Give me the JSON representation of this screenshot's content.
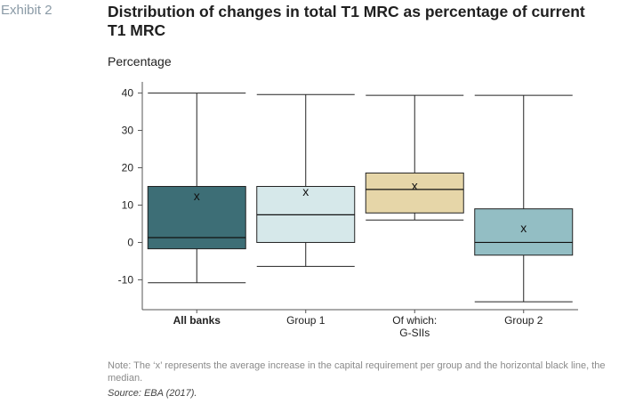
{
  "header": {
    "exhibit": "Exhibit 2",
    "title": "Distribution of changes in total T1 MRC as percentage of current T1 MRC"
  },
  "footer": {
    "note": "Note: The ‘x’ represents the average increase in the capital requirement per group and the horizontal black line, the median.",
    "source": "Source: EBA (2017)."
  },
  "chart_data": {
    "type": "box",
    "ylabel": "Percentage",
    "ylim": [
      -18,
      43
    ],
    "yticks": [
      -10,
      0,
      10,
      20,
      30,
      40
    ],
    "ytick_labels": [
      "-10",
      "0",
      "10",
      "20",
      "30",
      "40"
    ],
    "grid": false,
    "categories": [
      {
        "label": [
          "All banks"
        ],
        "bold": true,
        "color": "#3d6e76",
        "min": -10.8,
        "q1": -1.7,
        "median": 1.3,
        "q3": 15.0,
        "max": 40.0,
        "mean": 12.5
      },
      {
        "label": [
          "Group 1"
        ],
        "bold": false,
        "color": "#d6e8ea",
        "min": -6.4,
        "q1": 0.0,
        "median": 7.4,
        "q3": 15.0,
        "max": 39.6,
        "mean": 13.7
      },
      {
        "label": [
          "Of which:",
          "G-SIIs"
        ],
        "bold": false,
        "color": "#e6d6a8",
        "min": 6.0,
        "q1": 7.9,
        "median": 14.2,
        "q3": 18.6,
        "max": 39.4,
        "mean": 15.2
      },
      {
        "label": [
          "Group 2"
        ],
        "bold": false,
        "color": "#93bec4",
        "min": -15.9,
        "q1": -3.4,
        "median": 0.0,
        "q3": 9.0,
        "max": 39.4,
        "mean": 3.9
      }
    ]
  }
}
